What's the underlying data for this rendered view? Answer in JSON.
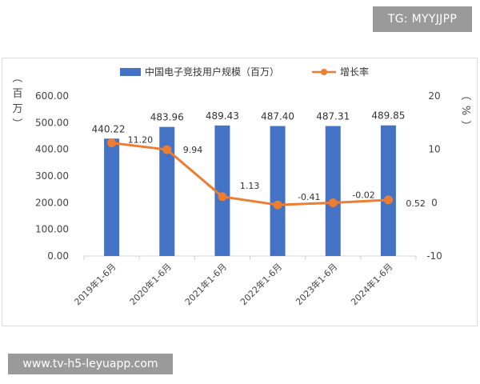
{
  "badges": {
    "telegram": "TG: MYYJJPP",
    "url": "www.tv-h5-leyuapp.com"
  },
  "chart_data": {
    "type": "bar",
    "categories": [
      "2019年1-6月",
      "2020年1-6月",
      "2021年1-6月",
      "2022年1-6月",
      "2023年1-6月",
      "2024年1-6月"
    ],
    "series": [
      {
        "name": "中国电子竞技用户规模（百万）",
        "type": "bar",
        "axis": "left",
        "color": "#4472c4",
        "values": [
          440.22,
          483.96,
          489.43,
          487.4,
          487.31,
          489.85
        ],
        "labels": [
          "440.22",
          "483.96",
          "489.43",
          "487.40",
          "487.31",
          "489.85"
        ]
      },
      {
        "name": "增长率",
        "type": "line",
        "axis": "right",
        "color": "#ed7d31",
        "values": [
          11.2,
          9.94,
          1.13,
          -0.41,
          -0.02,
          0.52
        ],
        "labels": [
          "11.20",
          "9.94",
          "1.13",
          "-0.41",
          "-0.02",
          "0.52"
        ]
      }
    ],
    "y_left": {
      "label_chars": [
        "（",
        "百",
        "万",
        "）"
      ],
      "range": [
        0,
        600
      ],
      "ticks": [
        "0.00",
        "100.00",
        "200.00",
        "300.00",
        "400.00",
        "500.00",
        "600.00"
      ],
      "tick_values": [
        0,
        100,
        200,
        300,
        400,
        500,
        600
      ]
    },
    "y_right": {
      "label_chars": [
        "（",
        "%",
        "）"
      ],
      "range": [
        -10,
        20
      ],
      "ticks": [
        "-10",
        "0",
        "10",
        "20"
      ],
      "tick_values": [
        -10,
        0,
        10,
        20
      ]
    },
    "legend_position": "top",
    "grid": false
  }
}
